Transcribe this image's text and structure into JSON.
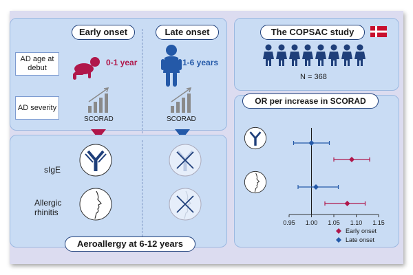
{
  "left": {
    "early_onset": "Early onset",
    "late_onset": "Late onset",
    "ad_age_label": "AD age at debut",
    "ad_severity_label": "AD severity",
    "early_age": "0-1 year",
    "late_age": "1-6 years",
    "scorad_early": "SCORAD",
    "scorad_late": "SCORAD",
    "sige": "sIgE",
    "allergic_rhinitis": "Allergic rhinitis",
    "aeroallergy": "Aeroallergy at 6-12 years"
  },
  "study": {
    "title": "The COPSAC study",
    "n": "N = 368"
  },
  "colors": {
    "early": "#b0174a",
    "late": "#2459a8",
    "navy": "#1f3f7a"
  },
  "icons": [
    "baby-icon",
    "toddler-icon",
    "bar-chart-icon",
    "antibody-icon",
    "face-profile-icon",
    "cross-icon",
    "denmark-flag-icon",
    "person-icon"
  ],
  "chart_data": {
    "type": "scatter",
    "title": "OR per increase in SCORAD",
    "xlabel": "",
    "ylabel": "",
    "xlim": [
      0.95,
      1.15
    ],
    "x_ticks": [
      "0.95",
      "1.00",
      "1.05",
      "1.10",
      "1.15"
    ],
    "reference_line": 1.0,
    "groups": [
      {
        "name": "sIgE",
        "icon": "antibody-icon",
        "points": [
          {
            "series": "Late onset",
            "or": 1.0,
            "lo": 0.96,
            "hi": 1.04
          },
          {
            "series": "Early onset",
            "or": 1.09,
            "lo": 1.05,
            "hi": 1.13
          }
        ]
      },
      {
        "name": "Allergic rhinitis",
        "icon": "face-profile-icon",
        "points": [
          {
            "series": "Late onset",
            "or": 1.01,
            "lo": 0.97,
            "hi": 1.06
          },
          {
            "series": "Early onset",
            "or": 1.08,
            "lo": 1.03,
            "hi": 1.12
          }
        ]
      }
    ],
    "legend": [
      {
        "name": "Early onset",
        "color": "#b0174a"
      },
      {
        "name": "Late onset",
        "color": "#2459a8"
      }
    ],
    "legend_position": "bottom-right"
  }
}
